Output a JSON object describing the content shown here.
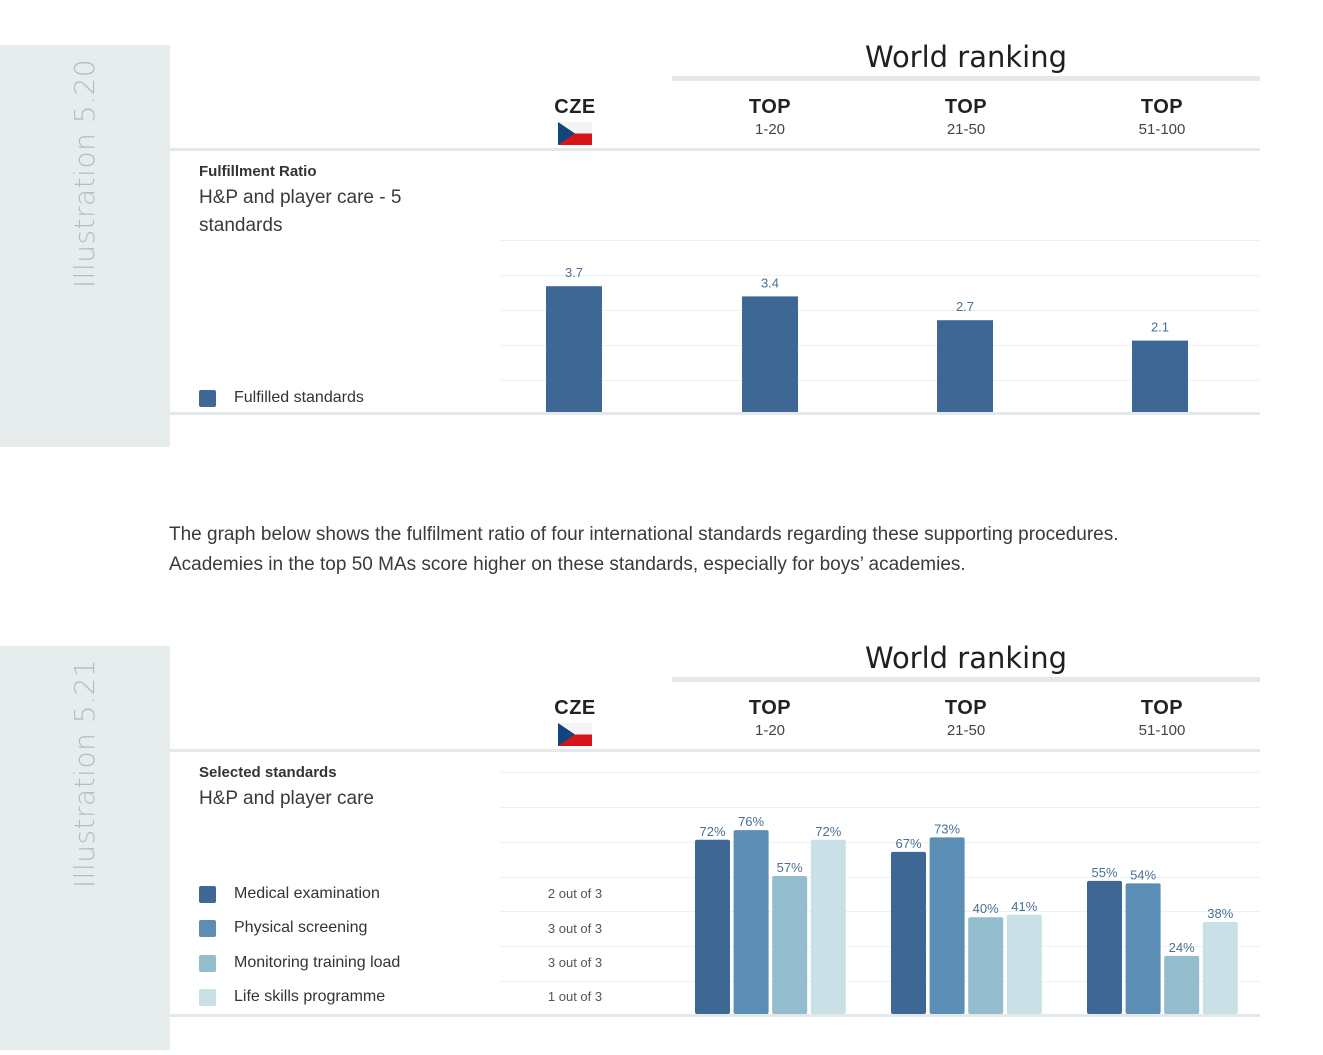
{
  "illustration_1": {
    "label": "Illustration 5.20",
    "world_ranking_title": "World ranking",
    "columns": [
      {
        "title": "CZE",
        "sub": ""
      },
      {
        "title": "TOP",
        "sub": "1-20"
      },
      {
        "title": "TOP",
        "sub": "21-50"
      },
      {
        "title": "TOP",
        "sub": "51-100"
      }
    ],
    "section_title": "Fulfillment Ratio",
    "section_subtitle_line1": "H&P and player care - 5",
    "section_subtitle_line2": "standards",
    "legend": [
      {
        "label": "Fulfilled standards",
        "color": "#3f6796"
      }
    ]
  },
  "paragraph": {
    "line1": "The graph below shows the fulfilment ratio of four international standards regarding these supporting procedures.",
    "line2": "Academies in the top 50 MAs score higher on these standards, especially for boys’ academies."
  },
  "illustration_2": {
    "label": "Illustration 5.21",
    "world_ranking_title": "World ranking",
    "columns": [
      {
        "title": "CZE",
        "sub": ""
      },
      {
        "title": "TOP",
        "sub": "1-20"
      },
      {
        "title": "TOP",
        "sub": "21-50"
      },
      {
        "title": "TOP",
        "sub": "51-100"
      }
    ],
    "section_title": "Selected standards",
    "section_subtitle": "H&P and player care",
    "legend": [
      {
        "label": "Medical examination",
        "color": "#3f6796",
        "cze": "2 out of 3"
      },
      {
        "label": "Physical screening",
        "color": "#5b8db5",
        "cze": "3 out of 3"
      },
      {
        "label": "Monitoring training load",
        "color": "#93bccc",
        "cze": "3 out of 3"
      },
      {
        "label": "Life skills programme",
        "color": "#c9e1e6",
        "cze": "1 out of 3"
      }
    ]
  },
  "chart_data": [
    {
      "type": "bar",
      "categories": [
        "CZE",
        "TOP 1-20",
        "TOP 21-50",
        "TOP 51-100"
      ],
      "series": [
        {
          "name": "Fulfilled standards",
          "values": [
            3.7,
            3.4,
            2.7,
            2.1
          ]
        }
      ],
      "value_labels": [
        "3.7",
        "3.4",
        "2.7",
        "2.1"
      ],
      "ylim": [
        0,
        5
      ],
      "color": "#3f6796",
      "label_color": "#4a6f96"
    },
    {
      "type": "bar",
      "categories": [
        "TOP 1-20",
        "TOP 21-50",
        "TOP 51-100"
      ],
      "series": [
        {
          "name": "Medical examination",
          "values": [
            72,
            67,
            55
          ],
          "labels": [
            "72%",
            "67%",
            "55%"
          ]
        },
        {
          "name": "Physical screening",
          "values": [
            76,
            73,
            54
          ],
          "labels": [
            "76%",
            "73%",
            "54%"
          ]
        },
        {
          "name": "Monitoring training load",
          "values": [
            57,
            40,
            24
          ],
          "labels": [
            "57%",
            "40%",
            "24%"
          ]
        },
        {
          "name": "Life skills programme",
          "values": [
            72,
            41,
            38
          ],
          "labels": [
            "72%",
            "41%",
            "38%"
          ]
        }
      ],
      "ylim": [
        0,
        100
      ],
      "colors": [
        "#3f6796",
        "#5b8db5",
        "#93bccc",
        "#c9e1e6"
      ],
      "label_color": "#4a6f96"
    }
  ]
}
